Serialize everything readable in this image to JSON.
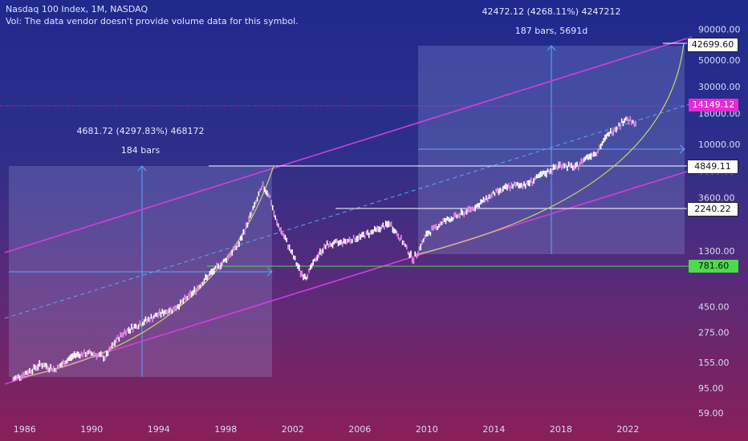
{
  "header": {
    "title": "Nasdaq 100 Index, 1M, NASDAQ",
    "volume_note": "Vol: The data vendor doesn't provide volume data for this symbol."
  },
  "annotations": {
    "left_range_line1": "4681.72 (4297.83%) 468172",
    "left_range_line2": "184 bars",
    "right_range_line1": "42472.12 (4268.11%) 4247212",
    "right_range_line2": "187 bars, 5691d"
  },
  "price_labels": {
    "top_target": "42699.60",
    "current": "14149.12",
    "dotcom_high": "4849.11",
    "mid_level": "2240.22",
    "support": "781.60"
  },
  "colors": {
    "channel": "#d63ce0",
    "current_price": "#e62bd6",
    "support": "#4bdc4b",
    "curve": "#c8d36a",
    "measure": "#5aa8ff",
    "candles": "#ffffff"
  },
  "chart_data": {
    "type": "line",
    "scale": "log",
    "xlabel": "",
    "ylabel": "",
    "x_ticks": [
      "1986",
      "1990",
      "1994",
      "1998",
      "2002",
      "2006",
      "2010",
      "2014",
      "2018",
      "2022"
    ],
    "y_ticks": [
      "90000.00",
      "50000.00",
      "30000.00",
      "18000.00",
      "10000.00",
      "6000.00",
      "3600.00",
      "1300.00",
      "450.00",
      "275.00",
      "155.00",
      "95.00",
      "59.00"
    ],
    "xlim": [
      1985,
      2025.5
    ],
    "ylim": [
      55,
      100000
    ],
    "series": [
      {
        "x": [
          1985.3,
          1986,
          1987,
          1987.8,
          1988.5,
          1989,
          1990,
          1990.8,
          1991.5,
          1992,
          1993,
          1994,
          1995,
          1996,
          1997,
          1998,
          1998.8,
          1999.5,
          2000.2,
          2000.6,
          2001,
          2001.5,
          2002,
          2002.5,
          2002.8,
          2003.5,
          2004,
          2005,
          2006,
          2007,
          2007.8,
          2008.5,
          2009.2,
          2010,
          2011,
          2012,
          2013,
          2014,
          2015,
          2016,
          2017,
          2018,
          2018.9,
          2019.5,
          2020.2,
          2020.8,
          2021.5,
          2021.9,
          2022.5
        ],
        "y": [
          112,
          125,
          150,
          135,
          160,
          180,
          185,
          170,
          240,
          280,
          330,
          390,
          440,
          580,
          820,
          1100,
          1500,
          2600,
          4500,
          3800,
          2300,
          1700,
          1200,
          850,
          800,
          1200,
          1450,
          1550,
          1700,
          1950,
          2200,
          1600,
          1100,
          1800,
          2300,
          2600,
          3100,
          3900,
          4500,
          4700,
          5700,
          6800,
          6400,
          7800,
          8800,
          12000,
          14500,
          16500,
          14149
        ]
      }
    ],
    "levels": [
      {
        "label": "42699.60",
        "value": 42699.6
      },
      {
        "label": "14149.12",
        "value": 14149.12
      },
      {
        "label": "4849.11",
        "value": 4849.11
      },
      {
        "label": "2240.22",
        "value": 2240.22
      },
      {
        "label": "781.60",
        "value": 781.6
      }
    ]
  }
}
